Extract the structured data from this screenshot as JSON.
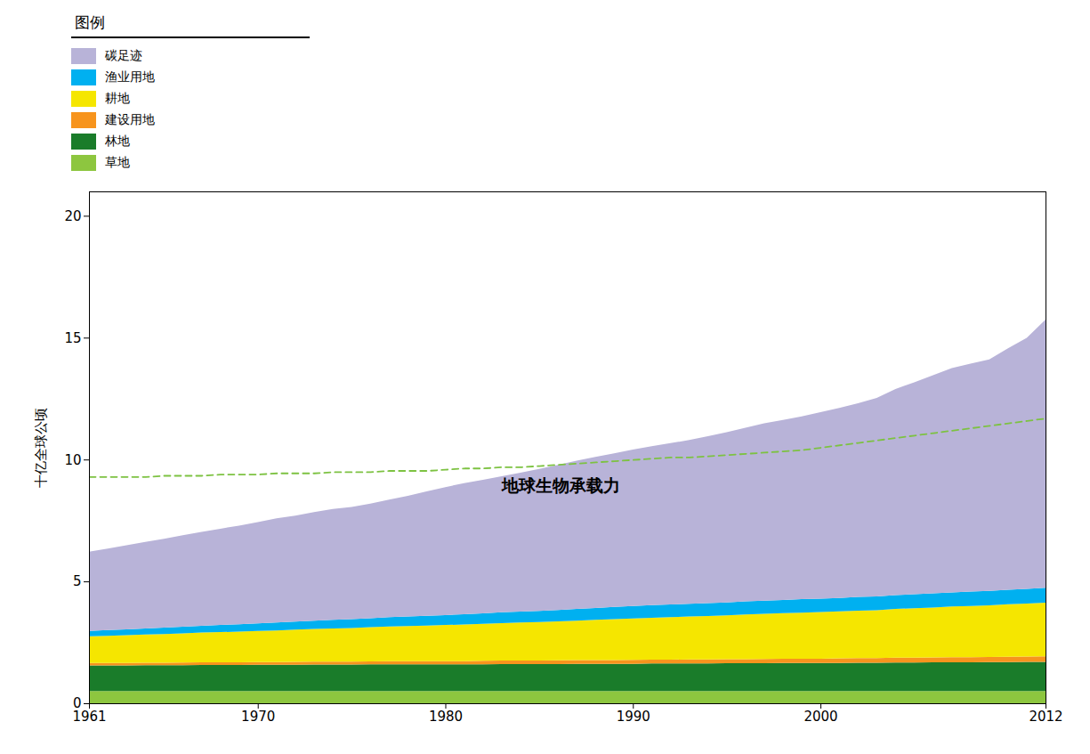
{
  "chart_data": {
    "type": "area",
    "stacked": true,
    "ylabel": "十亿全球公顷",
    "legend_title": "图例",
    "legend": "upper left",
    "grid": false,
    "annotation": {
      "text": "地球生物承载力",
      "x": 1983,
      "y": 8.7
    },
    "xlim": [
      1961,
      2012
    ],
    "xticks": [
      1961,
      1970,
      1980,
      1990,
      2000,
      2012
    ],
    "ylim": [
      0,
      21
    ],
    "yticks": [
      0,
      5,
      10,
      15,
      20
    ],
    "x": [
      1961,
      1962,
      1963,
      1964,
      1965,
      1966,
      1967,
      1968,
      1969,
      1970,
      1971,
      1972,
      1973,
      1974,
      1975,
      1976,
      1977,
      1978,
      1979,
      1980,
      1981,
      1982,
      1983,
      1984,
      1985,
      1986,
      1987,
      1988,
      1989,
      1990,
      1991,
      1992,
      1993,
      1994,
      1995,
      1996,
      1997,
      1998,
      1999,
      2000,
      2001,
      2002,
      2003,
      2004,
      2005,
      2006,
      2007,
      2008,
      2009,
      2010,
      2011,
      2012
    ],
    "series": [
      {
        "name": "草地",
        "color": "#8dc63f",
        "values": [
          0.5,
          0.5,
          0.5,
          0.5,
          0.5,
          0.5,
          0.5,
          0.5,
          0.5,
          0.5,
          0.5,
          0.5,
          0.5,
          0.5,
          0.5,
          0.5,
          0.5,
          0.5,
          0.5,
          0.5,
          0.5,
          0.5,
          0.5,
          0.5,
          0.5,
          0.5,
          0.5,
          0.5,
          0.5,
          0.5,
          0.5,
          0.5,
          0.5,
          0.5,
          0.5,
          0.5,
          0.5,
          0.5,
          0.5,
          0.5,
          0.5,
          0.5,
          0.5,
          0.5,
          0.5,
          0.5,
          0.5,
          0.5,
          0.5,
          0.5,
          0.5,
          0.5
        ]
      },
      {
        "name": "林地",
        "color": "#1a7c2a",
        "values": [
          1.05,
          1.05,
          1.05,
          1.06,
          1.06,
          1.06,
          1.07,
          1.07,
          1.07,
          1.08,
          1.08,
          1.08,
          1.09,
          1.09,
          1.09,
          1.1,
          1.1,
          1.1,
          1.1,
          1.1,
          1.1,
          1.1,
          1.11,
          1.11,
          1.11,
          1.11,
          1.12,
          1.12,
          1.12,
          1.12,
          1.13,
          1.13,
          1.13,
          1.13,
          1.14,
          1.14,
          1.14,
          1.15,
          1.15,
          1.15,
          1.15,
          1.16,
          1.16,
          1.17,
          1.17,
          1.18,
          1.18,
          1.18,
          1.19,
          1.19,
          1.2,
          1.2
        ]
      },
      {
        "name": "建设用地",
        "color": "#f7941d",
        "values": [
          0.1,
          0.1,
          0.1,
          0.1,
          0.1,
          0.11,
          0.11,
          0.11,
          0.11,
          0.11,
          0.11,
          0.12,
          0.12,
          0.12,
          0.12,
          0.12,
          0.13,
          0.13,
          0.13,
          0.13,
          0.13,
          0.14,
          0.14,
          0.14,
          0.14,
          0.15,
          0.15,
          0.15,
          0.15,
          0.16,
          0.16,
          0.16,
          0.17,
          0.17,
          0.17,
          0.17,
          0.18,
          0.18,
          0.18,
          0.18,
          0.19,
          0.19,
          0.19,
          0.2,
          0.2,
          0.2,
          0.21,
          0.21,
          0.21,
          0.22,
          0.22,
          0.23
        ]
      },
      {
        "name": "耕地",
        "color": "#f5e600",
        "values": [
          1.1,
          1.12,
          1.14,
          1.16,
          1.18,
          1.2,
          1.22,
          1.24,
          1.26,
          1.28,
          1.3,
          1.32,
          1.34,
          1.36,
          1.38,
          1.4,
          1.42,
          1.44,
          1.46,
          1.48,
          1.5,
          1.52,
          1.54,
          1.56,
          1.58,
          1.6,
          1.62,
          1.65,
          1.68,
          1.7,
          1.72,
          1.74,
          1.76,
          1.78,
          1.8,
          1.83,
          1.85,
          1.87,
          1.89,
          1.91,
          1.93,
          1.95,
          1.97,
          2.0,
          2.03,
          2.05,
          2.08,
          2.1,
          2.12,
          2.15,
          2.17,
          2.2
        ]
      },
      {
        "name": "渔业用地",
        "color": "#00b0f0",
        "values": [
          0.22,
          0.23,
          0.24,
          0.25,
          0.26,
          0.27,
          0.28,
          0.29,
          0.3,
          0.31,
          0.32,
          0.33,
          0.34,
          0.35,
          0.36,
          0.37,
          0.38,
          0.39,
          0.4,
          0.41,
          0.42,
          0.43,
          0.44,
          0.45,
          0.46,
          0.47,
          0.48,
          0.49,
          0.5,
          0.51,
          0.52,
          0.52,
          0.52,
          0.53,
          0.53,
          0.54,
          0.54,
          0.54,
          0.55,
          0.55,
          0.55,
          0.56,
          0.56,
          0.57,
          0.57,
          0.58,
          0.58,
          0.59,
          0.59,
          0.6,
          0.6,
          0.61
        ]
      },
      {
        "name": "碳足迹",
        "color": "#b8b3d8",
        "values": [
          3.25,
          3.35,
          3.45,
          3.55,
          3.65,
          3.75,
          3.85,
          3.95,
          4.05,
          4.15,
          4.28,
          4.35,
          4.45,
          4.55,
          4.6,
          4.7,
          4.82,
          4.95,
          5.1,
          5.25,
          5.38,
          5.48,
          5.58,
          5.7,
          5.82,
          5.95,
          6.08,
          6.2,
          6.3,
          6.42,
          6.52,
          6.62,
          6.72,
          6.85,
          6.98,
          7.12,
          7.28,
          7.38,
          7.5,
          7.65,
          7.8,
          7.95,
          8.15,
          8.45,
          8.7,
          8.95,
          9.2,
          9.35,
          9.5,
          9.9,
          10.3,
          11.0
        ]
      },
      {
        "type": "line",
        "line_style": "dashed",
        "color": "#7dc242",
        "values": [
          9.3,
          9.3,
          9.3,
          9.3,
          9.35,
          9.35,
          9.35,
          9.4,
          9.4,
          9.4,
          9.45,
          9.45,
          9.45,
          9.5,
          9.5,
          9.5,
          9.55,
          9.55,
          9.55,
          9.6,
          9.65,
          9.65,
          9.7,
          9.7,
          9.75,
          9.8,
          9.85,
          9.9,
          9.95,
          10.0,
          10.05,
          10.1,
          10.1,
          10.15,
          10.2,
          10.25,
          10.3,
          10.35,
          10.4,
          10.5,
          10.6,
          10.7,
          10.8,
          10.9,
          11.0,
          11.1,
          11.2,
          11.3,
          11.4,
          11.5,
          11.6,
          11.7
        ]
      }
    ]
  }
}
